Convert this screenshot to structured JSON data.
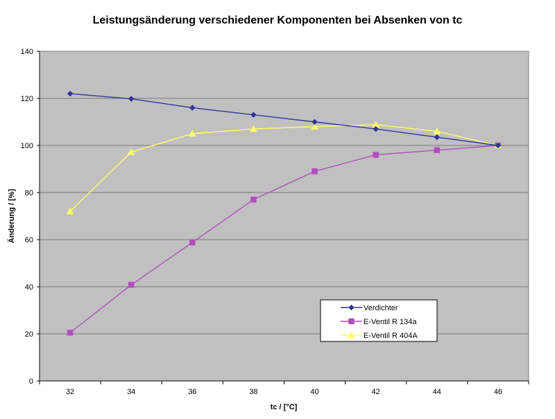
{
  "chart_data": {
    "type": "line",
    "title": "Leistungsänderung verschiedener Komponenten bei Absenken von tc",
    "xlabel": "tc / [°C]",
    "ylabel": "Änderung / [%]",
    "x": [
      32,
      34,
      36,
      38,
      40,
      42,
      44,
      46
    ],
    "ylim": [
      0,
      140
    ],
    "yticks": [
      0,
      20,
      40,
      60,
      80,
      100,
      120,
      140
    ],
    "grid": "horizontal",
    "legend": "bottom-right",
    "plot_background": "#c0c0c0",
    "series": [
      {
        "name": "Verdichter",
        "marker": "diamond",
        "color": "#333399",
        "values": [
          122,
          119.8,
          116,
          113,
          110,
          107,
          103.5,
          100
        ]
      },
      {
        "name": "E-Ventil R 134a",
        "marker": "square",
        "color": "#b24cbf",
        "values": [
          20.5,
          40.8,
          58.8,
          77,
          89,
          96,
          98,
          100
        ]
      },
      {
        "name": "E-Ventil R 404A",
        "marker": "triangle",
        "color": "#ffff66",
        "values": [
          72,
          97.2,
          105,
          107,
          108,
          108.8,
          106,
          100
        ]
      }
    ]
  }
}
